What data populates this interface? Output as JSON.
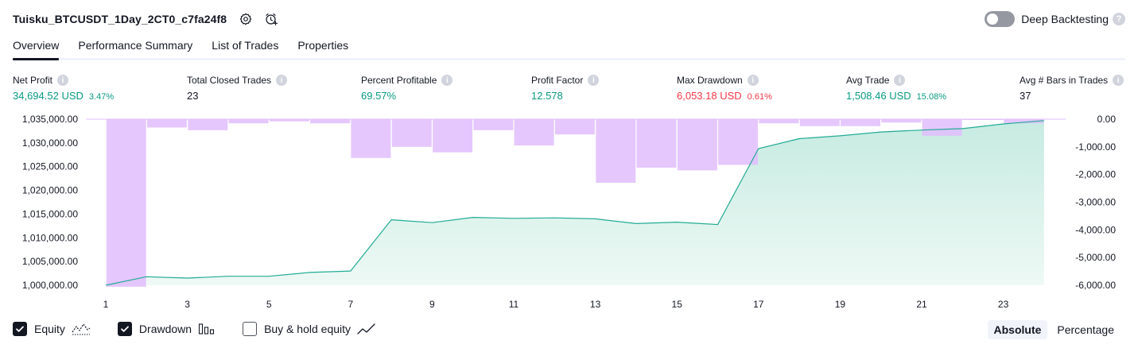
{
  "header": {
    "title": "Tuisku_BTCUSDT_1Day_2CT0_c7fa24f8",
    "icons": [
      "settings-icon",
      "add-alert-icon"
    ],
    "deep_backtesting_label": "Deep Backtesting",
    "deep_backtesting_enabled": false
  },
  "tabs": [
    {
      "label": "Overview",
      "active": true
    },
    {
      "label": "Performance Summary",
      "active": false
    },
    {
      "label": "List of Trades",
      "active": false
    },
    {
      "label": "Properties",
      "active": false
    }
  ],
  "metrics": [
    {
      "title": "Net Profit",
      "value": "34,694.52 USD",
      "sub": "3.47%",
      "tone": "pos"
    },
    {
      "title": "Total Closed Trades",
      "value": "23",
      "sub": "",
      "tone": "plain"
    },
    {
      "title": "Percent Profitable",
      "value": "69.57%",
      "sub": "",
      "tone": "pos"
    },
    {
      "title": "Profit Factor",
      "value": "12.578",
      "sub": "",
      "tone": "pos"
    },
    {
      "title": "Max Drawdown",
      "value": "6,053.18 USD",
      "sub": "0.61%",
      "tone": "neg"
    },
    {
      "title": "Avg Trade",
      "value": "1,508.46 USD",
      "sub": "15.08%",
      "tone": "pos"
    },
    {
      "title": "Avg # Bars in Trades",
      "value": "37",
      "sub": "",
      "tone": "plain"
    }
  ],
  "chart_data": {
    "type": "line",
    "x": [
      1,
      2,
      3,
      4,
      5,
      6,
      7,
      8,
      9,
      10,
      11,
      12,
      13,
      14,
      15,
      16,
      17,
      18,
      19,
      20,
      21,
      22,
      23,
      24
    ],
    "x_tick_labels": [
      "1",
      "3",
      "5",
      "7",
      "9",
      "11",
      "13",
      "15",
      "17",
      "19",
      "21",
      "23"
    ],
    "series": [
      {
        "kind": "area",
        "axis": "left",
        "values": [
          1000000,
          1001800,
          1001500,
          1001900,
          1001900,
          1002700,
          1003000,
          1013800,
          1013200,
          1014300,
          1014100,
          1014200,
          1014000,
          1013000,
          1013300,
          1012800,
          1028800,
          1030900,
          1031500,
          1032300,
          1032700,
          1033000,
          1034000,
          1034694.52
        ]
      },
      {
        "kind": "bar",
        "axis": "right",
        "values": [
          null,
          -6053.18,
          -300,
          -400,
          -150,
          -80,
          -150,
          -1400,
          -1000,
          -1200,
          -400,
          -950,
          -550,
          -2300,
          -1750,
          -1850,
          -1650,
          -150,
          -250,
          -250,
          -120,
          -600,
          0,
          -150
        ]
      }
    ],
    "left_axis": {
      "min": 1000000,
      "max": 1035000,
      "ticks": [
        "1,035,000.00",
        "1,030,000.00",
        "1,025,000.00",
        "1,020,000.00",
        "1,015,000.00",
        "1,010,000.00",
        "1,005,000.00",
        "1,000,000.00"
      ]
    },
    "right_axis": {
      "min": -6000,
      "max": 0,
      "ticks": [
        "0.00",
        "-1,000.00",
        "-2,000.00",
        "-3,000.00",
        "-4,000.00",
        "-5,000.00",
        "-6,000.00"
      ]
    },
    "colors": {
      "equity_line": "#22ab94",
      "equity_fill_top": "#c6ebe1",
      "equity_fill_bottom": "#eef9f5",
      "drawdown_bar": "#e1bdfd",
      "overlap_bar": "#b3c8ea"
    }
  },
  "footer": {
    "checkboxes": [
      {
        "label": "Equity",
        "checked": true,
        "icon": "equity-wave-icon"
      },
      {
        "label": "Drawdown",
        "checked": true,
        "icon": "drawdown-bars-icon"
      },
      {
        "label": "Buy & hold equity",
        "checked": false,
        "icon": "buy-hold-line-icon"
      }
    ],
    "modes": [
      {
        "label": "Absolute",
        "active": true
      },
      {
        "label": "Percentage",
        "active": false
      }
    ]
  }
}
